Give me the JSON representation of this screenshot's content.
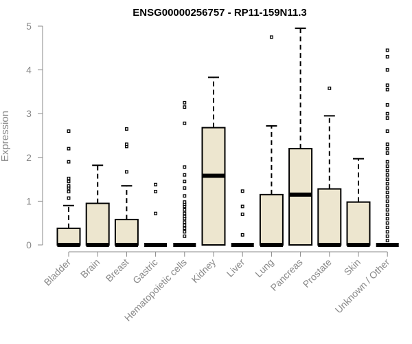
{
  "chart_data": {
    "type": "box",
    "title": "ENSG00000256757 - RP11-159N11.3",
    "ylabel": "Expression",
    "xlabel": "",
    "ylim": [
      0,
      5
    ],
    "yticks": [
      0,
      1,
      2,
      3,
      4,
      5
    ],
    "box_fill": "#ede6cf",
    "categories": [
      "Bladder",
      "Brain",
      "Breast",
      "Gastric",
      "Hematopoietic cells",
      "Kidney",
      "Liver",
      "Lung",
      "Pancreas",
      "Prostate",
      "Skin",
      "Unknown / Other"
    ],
    "boxes": [
      {
        "name": "Bladder",
        "q1": 0,
        "median": 0,
        "q3": 0.38,
        "whisker_low": 0,
        "whisker_high": 0.9,
        "outliers": [
          1.07,
          1.22,
          1.3,
          1.35,
          1.45,
          1.52,
          1.9,
          2.2,
          2.6
        ]
      },
      {
        "name": "Brain",
        "q1": 0,
        "median": 0,
        "q3": 0.95,
        "whisker_low": 0,
        "whisker_high": 1.82,
        "outliers": []
      },
      {
        "name": "Breast",
        "q1": 0,
        "median": 0,
        "q3": 0.58,
        "whisker_low": 0,
        "whisker_high": 1.35,
        "outliers": [
          1.67,
          2.25,
          2.3,
          2.65
        ]
      },
      {
        "name": "Gastric",
        "q1": 0,
        "median": 0,
        "q3": 0,
        "whisker_low": 0,
        "whisker_high": 0,
        "outliers": [
          0.72,
          1.22,
          1.38
        ]
      },
      {
        "name": "Hematopoietic cells",
        "q1": 0,
        "median": 0,
        "q3": 0,
        "whisker_low": 0,
        "whisker_high": 0,
        "outliers": [
          0.2,
          0.3,
          0.38,
          0.45,
          0.52,
          0.6,
          0.65,
          0.72,
          0.8,
          0.88,
          0.93,
          0.98,
          1.12,
          1.3,
          1.45,
          1.6,
          1.78,
          2.78,
          3.15,
          3.25
        ]
      },
      {
        "name": "Kidney",
        "q1": 0,
        "median": 1.58,
        "q3": 2.68,
        "whisker_low": 0,
        "whisker_high": 3.83,
        "outliers": []
      },
      {
        "name": "Liver",
        "q1": 0,
        "median": 0,
        "q3": 0,
        "whisker_low": 0,
        "whisker_high": 0,
        "outliers": [
          0.23,
          0.7,
          0.88,
          1.23
        ]
      },
      {
        "name": "Lung",
        "q1": 0,
        "median": 0,
        "q3": 1.15,
        "whisker_low": 0,
        "whisker_high": 2.72,
        "outliers": [
          4.75
        ]
      },
      {
        "name": "Pancreas",
        "q1": 0,
        "median": 1.15,
        "q3": 2.2,
        "whisker_low": 0,
        "whisker_high": 4.95,
        "outliers": []
      },
      {
        "name": "Prostate",
        "q1": 0,
        "median": 0,
        "q3": 1.28,
        "whisker_low": 0,
        "whisker_high": 2.95,
        "outliers": [
          3.58
        ]
      },
      {
        "name": "Skin",
        "q1": 0,
        "median": 0,
        "q3": 0.98,
        "whisker_low": 0,
        "whisker_high": 1.97,
        "outliers": []
      },
      {
        "name": "Unknown / Other",
        "q1": 0,
        "median": 0,
        "q3": 0,
        "whisker_low": 0,
        "whisker_high": 0,
        "outliers": [
          0.1,
          0.2,
          0.3,
          0.4,
          0.5,
          0.6,
          0.7,
          0.8,
          0.9,
          1.0,
          1.1,
          1.2,
          1.3,
          1.4,
          1.5,
          1.6,
          1.7,
          1.8,
          1.9,
          2.1,
          2.2,
          2.3,
          2.6,
          2.9,
          3.0,
          3.2,
          3.55,
          3.65,
          4.0,
          4.3,
          4.45
        ]
      }
    ]
  }
}
